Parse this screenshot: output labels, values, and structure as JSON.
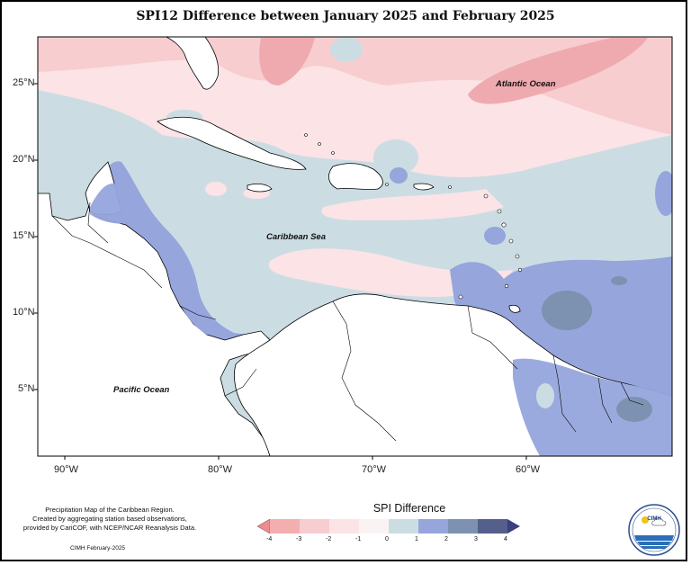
{
  "title": "SPI12 Difference between January 2025 and February 2025",
  "axes": {
    "lat_labels": [
      "25°N",
      "20°N",
      "15°N",
      "10°N",
      "5°N"
    ],
    "lon_labels": [
      "90°W",
      "80°W",
      "70°W",
      "60°W"
    ]
  },
  "places": {
    "atlantic": "Atlantic Ocean",
    "caribbean": "Caribbean Sea",
    "pacific": "Pacific Ocean"
  },
  "credits": {
    "line1": "Precipitation Map of the Caribbean Region.",
    "line2": "Created by aggregating station based observations,",
    "line3": "provided by CariCOF, with NCEP/NCAR Reanalysis Data."
  },
  "footer": "CIMH February-2025",
  "legend": {
    "title": "SPI Difference",
    "ticks": [
      "-4",
      "-3",
      "-2",
      "-1",
      "0",
      "1",
      "2",
      "3",
      "4"
    ],
    "colors": [
      "#f08a8e",
      "#f3aeb0",
      "#f7cdd0",
      "#fbe3e6",
      "#faf3f4",
      "#cbdde3",
      "#96a5dc",
      "#7d92b0",
      "#555f8c",
      "#3b3f7d"
    ]
  },
  "logo": {
    "text": "CIMH"
  },
  "colors": {
    "land": "#ffffff",
    "pink_light": "#fbe3e6",
    "pink_mid": "#f7cdd0",
    "pink_dark": "#efaab0",
    "neutral": "#fdf3f4",
    "blue_light": "#cbdde3",
    "blue_mid": "#96a5dc",
    "blue_dark": "#7d92b0"
  }
}
